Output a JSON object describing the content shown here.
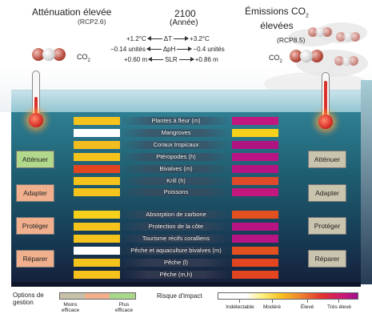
{
  "header": {
    "left_title": "Atténuation élevée",
    "left_subtitle": "(RCP2.6)",
    "center_title": "2100",
    "center_subtitle": "(Année)",
    "right_title_line1": "Émissions CO",
    "right_title_sub": "2",
    "right_title_line2": "élevées",
    "right_subtitle": "(RCP8.5)",
    "co2_label": "CO",
    "co2_sub": "2"
  },
  "comparisons": [
    {
      "left": "+1.2°C",
      "symbol": "ΔT",
      "right": "+3.2°C"
    },
    {
      "left": "−0.14 unités",
      "symbol": "ΔpH",
      "right": "−0.4 unités"
    },
    {
      "left": "+0.60 m",
      "symbol": "SLR",
      "right": "+0.86 m"
    }
  ],
  "options": {
    "attenuer": "Atténuer",
    "adapter": "Adapter",
    "proteger": "Protéger",
    "reparer": "Réparer"
  },
  "rows": [
    {
      "label": "Plantes à fleur (m)",
      "left_color": "#f6c21c",
      "right_color": "#c2177d"
    },
    {
      "label": "Mangroves",
      "left_color": "#ffffff",
      "right_color": "#f6d11c"
    },
    {
      "label": "Coraux tropicaux",
      "left_color": "#f4bd1f",
      "right_color": "#b01482"
    },
    {
      "label": "Ptéropodes (h)",
      "left_color": "#f6c21c",
      "right_color": "#b81483"
    },
    {
      "label": "Bivalves (m)",
      "left_color": "#e24520",
      "right_color": "#b61482"
    },
    {
      "label": "Krill (h)",
      "left_color": "#f6c21c",
      "right_color": "#e0492a"
    },
    {
      "label": "Poissons",
      "left_color": "#f6c21c",
      "right_color": "#c2177d"
    },
    {
      "label": "Absorption de carbone",
      "left_color": "#f6d11c",
      "right_color": "#e3501f"
    },
    {
      "label": "Protection de la côte",
      "left_color": "#f6c21c",
      "right_color": "#b81483"
    },
    {
      "label": "Tourisme récifs coralliens",
      "left_color": "#f6c21c",
      "right_color": "#b81483"
    },
    {
      "label": "Pêche et aquaculture bivalves (m)",
      "left_color": "#ffffff",
      "right_color": "#e3501f"
    },
    {
      "label": "Pêche (l)",
      "left_color": "#f6c21c",
      "right_color": "#e24520"
    },
    {
      "label": "Pêche (m,h)",
      "left_color": "#f6c21c",
      "right_color": "#e24520"
    }
  ],
  "legend": {
    "options_title_1": "Options de",
    "options_title_2": "gestion",
    "less_1": "Moins",
    "less_2": "efficace",
    "more_1": "Plus",
    "more_2": "efficace",
    "risk_title": "Risque d'impact",
    "undetectable": "Indétectable",
    "moderate": "Modéré",
    "high": "Élevé",
    "very_high": "Très élevé"
  },
  "colors": {
    "option_box_grey": "#c9c4ae",
    "option_box_orange": "#f0b08d",
    "option_box_green": "#b2d88c"
  }
}
